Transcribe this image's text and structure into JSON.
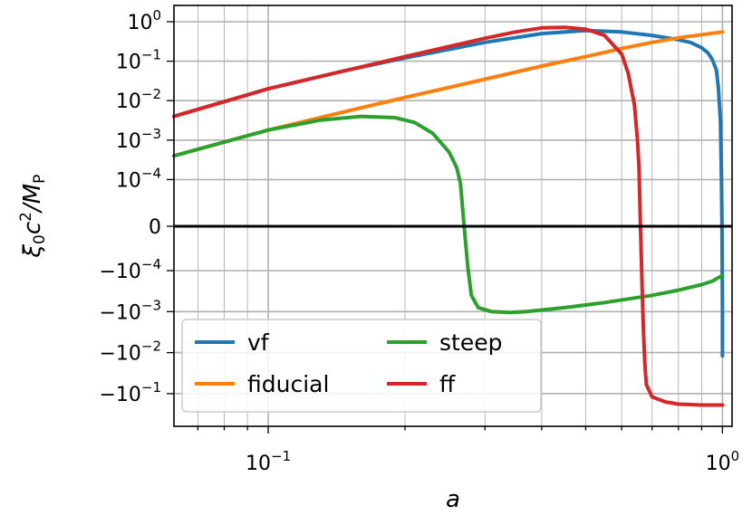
{
  "chart_data": {
    "type": "line",
    "xlabel": "a",
    "ylabel": "ξ₀c²/M_P",
    "xscale": "log",
    "yscale": "symlog",
    "xlim": [
      0.062,
      1.05
    ],
    "ylim": [
      -0.5,
      2.0
    ],
    "grid": true,
    "legend_placement": "lower-left",
    "x_ticks": [
      {
        "value": 0.1,
        "label": "10",
        "exp": "−1"
      },
      {
        "value": 1.0,
        "label": "10",
        "exp": "0"
      }
    ],
    "y_ticks": [
      {
        "value": 1,
        "base": "10",
        "exp": "0"
      },
      {
        "value": 0.1,
        "base": "10",
        "exp": "−1"
      },
      {
        "value": 0.01,
        "base": "10",
        "exp": "−2"
      },
      {
        "value": 0.001,
        "base": "10",
        "exp": "−3"
      },
      {
        "value": 0.0001,
        "base": "10",
        "exp": "−4"
      },
      {
        "value": 0,
        "base": "0",
        "exp": ""
      },
      {
        "value": -0.0001,
        "base": "−10",
        "exp": "−4"
      },
      {
        "value": -0.001,
        "base": "−10",
        "exp": "−3"
      },
      {
        "value": -0.01,
        "base": "−10",
        "exp": "−2"
      },
      {
        "value": -0.1,
        "base": "−10",
        "exp": "−1"
      }
    ],
    "series": [
      {
        "name": "vf",
        "color": "#1f77b4",
        "x": [
          0.062,
          0.1,
          0.15,
          0.2,
          0.3,
          0.4,
          0.5,
          0.6,
          0.7,
          0.8,
          0.85,
          0.9,
          0.93,
          0.95,
          0.97,
          0.98,
          0.99,
          0.995,
          0.998,
          1.0,
          1.0
        ],
        "y": [
          0.004,
          0.02,
          0.06,
          0.12,
          0.3,
          0.5,
          0.6,
          0.55,
          0.45,
          0.35,
          0.3,
          0.22,
          0.16,
          0.11,
          0.06,
          0.02,
          0.003,
          0.0001,
          0,
          -0.001,
          -0.012
        ]
      },
      {
        "name": "fiducial",
        "color": "#ff7f0e",
        "x": [
          0.062,
          0.1,
          0.15,
          0.2,
          0.3,
          0.4,
          0.5,
          0.6,
          0.7,
          0.8,
          0.9,
          1.0
        ],
        "y": [
          0.0004,
          0.0018,
          0.0055,
          0.012,
          0.035,
          0.075,
          0.13,
          0.21,
          0.3,
          0.39,
          0.47,
          0.55
        ]
      },
      {
        "name": "steep",
        "color": "#2ca02c",
        "x": [
          0.062,
          0.1,
          0.13,
          0.16,
          0.19,
          0.21,
          0.23,
          0.25,
          0.26,
          0.265,
          0.27,
          0.275,
          0.28,
          0.29,
          0.31,
          0.34,
          0.37,
          0.45,
          0.55,
          0.7,
          0.8,
          0.9,
          0.95,
          1.0
        ],
        "y": [
          0.0004,
          0.0018,
          0.0032,
          0.004,
          0.0037,
          0.0028,
          0.0015,
          0.0005,
          0.0002,
          8e-05,
          0,
          -8e-05,
          -0.0004,
          -0.0008,
          -0.001,
          -0.00105,
          -0.001,
          -0.0008,
          -0.0006,
          -0.0004,
          -0.0003,
          -0.00022,
          -0.00018,
          -0.00013
        ]
      },
      {
        "name": "ff",
        "color": "#d62728",
        "x": [
          0.062,
          0.1,
          0.15,
          0.2,
          0.3,
          0.35,
          0.4,
          0.45,
          0.5,
          0.55,
          0.6,
          0.62,
          0.64,
          0.65,
          0.655,
          0.66,
          0.665,
          0.67,
          0.675,
          0.68,
          0.7,
          0.75,
          0.8,
          0.9,
          1.0
        ],
        "y": [
          0.004,
          0.02,
          0.06,
          0.13,
          0.38,
          0.55,
          0.7,
          0.72,
          0.65,
          0.45,
          0.15,
          0.05,
          0.008,
          0.001,
          0.0002,
          0,
          -0.0002,
          -0.003,
          -0.02,
          -0.06,
          -0.12,
          -0.16,
          -0.18,
          -0.19,
          -0.19
        ]
      }
    ]
  }
}
